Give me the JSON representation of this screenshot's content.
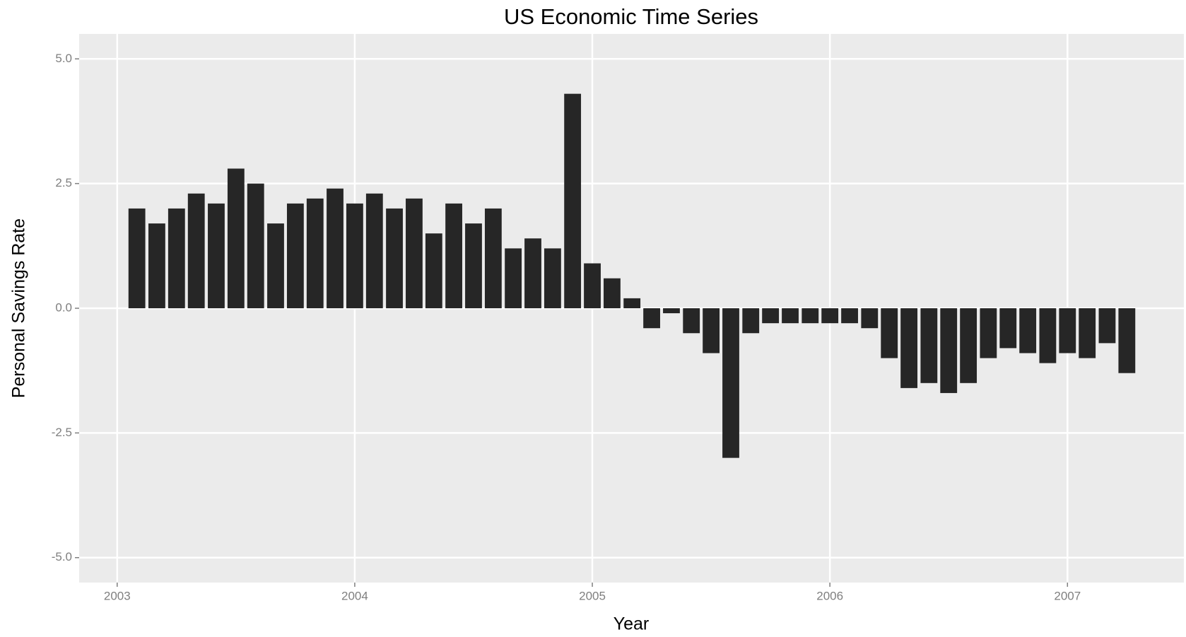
{
  "chart_data": {
    "type": "bar",
    "title": "US Economic Time Series",
    "x_label": "Year",
    "y_label": "Personal Savings Rate",
    "x": [
      2003.083,
      2003.167,
      2003.25,
      2003.333,
      2003.417,
      2003.5,
      2003.583,
      2003.667,
      2003.75,
      2003.833,
      2003.917,
      2004.0,
      2004.083,
      2004.167,
      2004.25,
      2004.333,
      2004.417,
      2004.5,
      2004.583,
      2004.667,
      2004.75,
      2004.833,
      2004.917,
      2005.0,
      2005.083,
      2005.167,
      2005.25,
      2005.333,
      2005.417,
      2005.5,
      2005.583,
      2005.667,
      2005.75,
      2005.833,
      2005.917,
      2006.0,
      2006.083,
      2006.167,
      2006.25,
      2006.333,
      2006.417,
      2006.5,
      2006.583,
      2006.667,
      2006.75,
      2006.833,
      2006.917,
      2007.0,
      2007.083,
      2007.167,
      2007.25
    ],
    "values": [
      2.0,
      1.7,
      2.0,
      2.3,
      2.1,
      2.8,
      2.5,
      1.7,
      2.1,
      2.2,
      2.4,
      2.1,
      2.3,
      2.0,
      2.2,
      1.5,
      2.1,
      1.7,
      2.0,
      1.2,
      1.4,
      1.2,
      4.3,
      0.9,
      0.6,
      0.2,
      -0.4,
      -0.1,
      -0.5,
      -0.9,
      -3.0,
      -0.5,
      -0.3,
      -0.3,
      -0.3,
      -0.3,
      -0.3,
      -0.4,
      -1.0,
      -1.6,
      -1.5,
      -1.7,
      -1.5,
      -1.0,
      -0.8,
      -0.9,
      -1.1,
      -0.9,
      -1.0,
      -0.7,
      -1.3
    ],
    "color": "#262626",
    "xlim": [
      2002.84,
      2007.49
    ],
    "xticks": [
      2003,
      2004,
      2005,
      2006,
      2007
    ],
    "ylim": [
      -5.5,
      5.5
    ],
    "yticks": [
      {
        "value": -5,
        "label": "-5.0"
      },
      {
        "value": -2.5,
        "label": "-2.5"
      },
      {
        "value": 0,
        "label": "0.0"
      },
      {
        "value": 2.5,
        "label": "2.5"
      },
      {
        "value": 5,
        "label": "5.0"
      }
    ],
    "grid": true
  }
}
